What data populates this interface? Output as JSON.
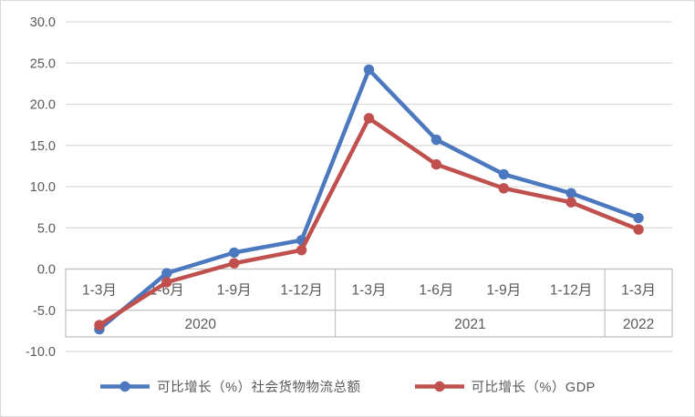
{
  "chart_data": {
    "type": "line",
    "categories": [
      "1-3月",
      "1-6月",
      "1-9月",
      "1-12月",
      "1-3月",
      "1-6月",
      "1-9月",
      "1-12月",
      "1-3月"
    ],
    "year_groups": [
      {
        "label": "2020",
        "span": 4
      },
      {
        "label": "2021",
        "span": 4
      },
      {
        "label": "2022",
        "span": 1
      }
    ],
    "series": [
      {
        "name": "可比增长（%）社会货物物流总额",
        "color": "#4b78be",
        "values": [
          -7.3,
          -0.5,
          2.0,
          3.5,
          24.2,
          15.7,
          11.5,
          9.2,
          6.2
        ]
      },
      {
        "name": "可比增长（%）GDP",
        "color": "#c0504d",
        "values": [
          -6.8,
          -1.6,
          0.7,
          2.3,
          18.3,
          12.7,
          9.8,
          8.1,
          4.8
        ]
      }
    ],
    "ylim": [
      -10,
      30
    ],
    "ytick_labels": [
      "30.0",
      "25.0",
      "20.0",
      "15.0",
      "10.0",
      "5.0",
      "0.0",
      "-5.0",
      "-10.0"
    ],
    "grid": true,
    "legend_position": "bottom",
    "title": "",
    "xlabel": "",
    "ylabel": ""
  },
  "styles": {
    "grid_color": "#d9d9d9",
    "table_border_color": "#bfbfbf",
    "text_color": "#595959",
    "background": "#ffffff"
  }
}
